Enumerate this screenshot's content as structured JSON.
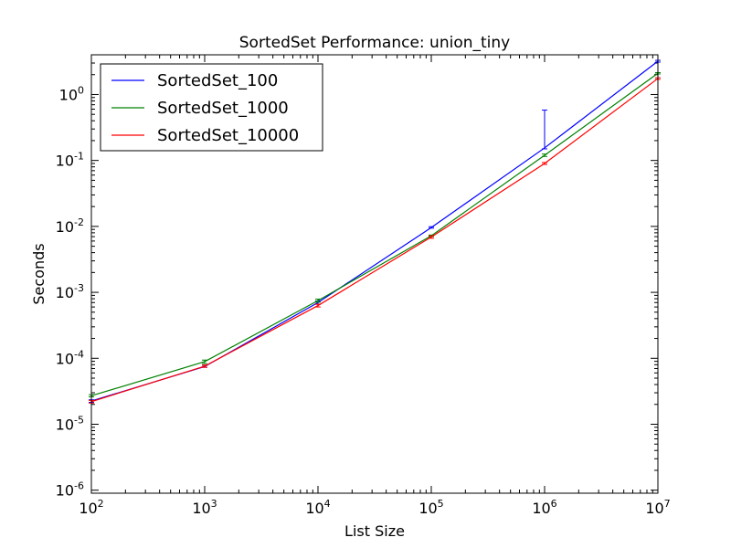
{
  "chart_data": {
    "type": "line",
    "title": "SortedSet Performance: union_tiny",
    "xlabel": "List Size",
    "ylabel": "Seconds",
    "xscale": "log",
    "yscale": "log",
    "xlim": [
      100,
      10000000
    ],
    "ylim": [
      9e-07,
      4
    ],
    "xticks": [
      {
        "value": 100,
        "base": "10",
        "exp": "2"
      },
      {
        "value": 1000,
        "base": "10",
        "exp": "3"
      },
      {
        "value": 10000,
        "base": "10",
        "exp": "4"
      },
      {
        "value": 100000,
        "base": "10",
        "exp": "5"
      },
      {
        "value": 1000000,
        "base": "10",
        "exp": "6"
      },
      {
        "value": 10000000,
        "base": "10",
        "exp": "7"
      }
    ],
    "yticks": [
      {
        "value": 1e-06,
        "base": "10",
        "exp": "-6"
      },
      {
        "value": 1e-05,
        "base": "10",
        "exp": "-5"
      },
      {
        "value": 0.0001,
        "base": "10",
        "exp": "-4"
      },
      {
        "value": 0.001,
        "base": "10",
        "exp": "-3"
      },
      {
        "value": 0.01,
        "base": "10",
        "exp": "-2"
      },
      {
        "value": 0.1,
        "base": "10",
        "exp": "-1"
      },
      {
        "value": 1,
        "base": "10",
        "exp": "0"
      }
    ],
    "x": [
      100,
      1000,
      10000,
      100000,
      1000000,
      10000000
    ],
    "series": [
      {
        "name": "SortedSet_100",
        "color": "#0000ff",
        "values": [
          2.25e-05,
          7.5e-05,
          0.0007,
          0.0096,
          0.155,
          3.2
        ],
        "err_low": [
          2.15e-05,
          7.3e-05,
          0.00066,
          0.0094,
          0.15,
          3.1
        ],
        "err_high": [
          2.35e-05,
          7.8e-05,
          0.00074,
          0.0099,
          0.58,
          3.3
        ]
      },
      {
        "name": "SortedSet_1000",
        "color": "#008000",
        "values": [
          2.7e-05,
          8.9e-05,
          0.00075,
          0.0072,
          0.12,
          2.1
        ],
        "err_low": [
          2.6e-05,
          8.3e-05,
          0.00071,
          0.007,
          0.115,
          2.05
        ],
        "err_high": [
          2.8e-05,
          9.4e-05,
          0.00079,
          0.0074,
          0.125,
          2.15
        ]
      },
      {
        "name": "SortedSet_10000",
        "color": "#ff0000",
        "values": [
          2.2e-05,
          7.6e-05,
          0.00063,
          0.0069,
          0.09,
          1.75
        ],
        "err_low": [
          2.1e-05,
          7.3e-05,
          0.0006,
          0.0066,
          0.087,
          1.7
        ],
        "err_high": [
          2.3e-05,
          7.9e-05,
          0.00066,
          0.0072,
          0.093,
          1.8
        ]
      }
    ],
    "legend": {
      "placement": "top-left"
    },
    "grid": false
  }
}
